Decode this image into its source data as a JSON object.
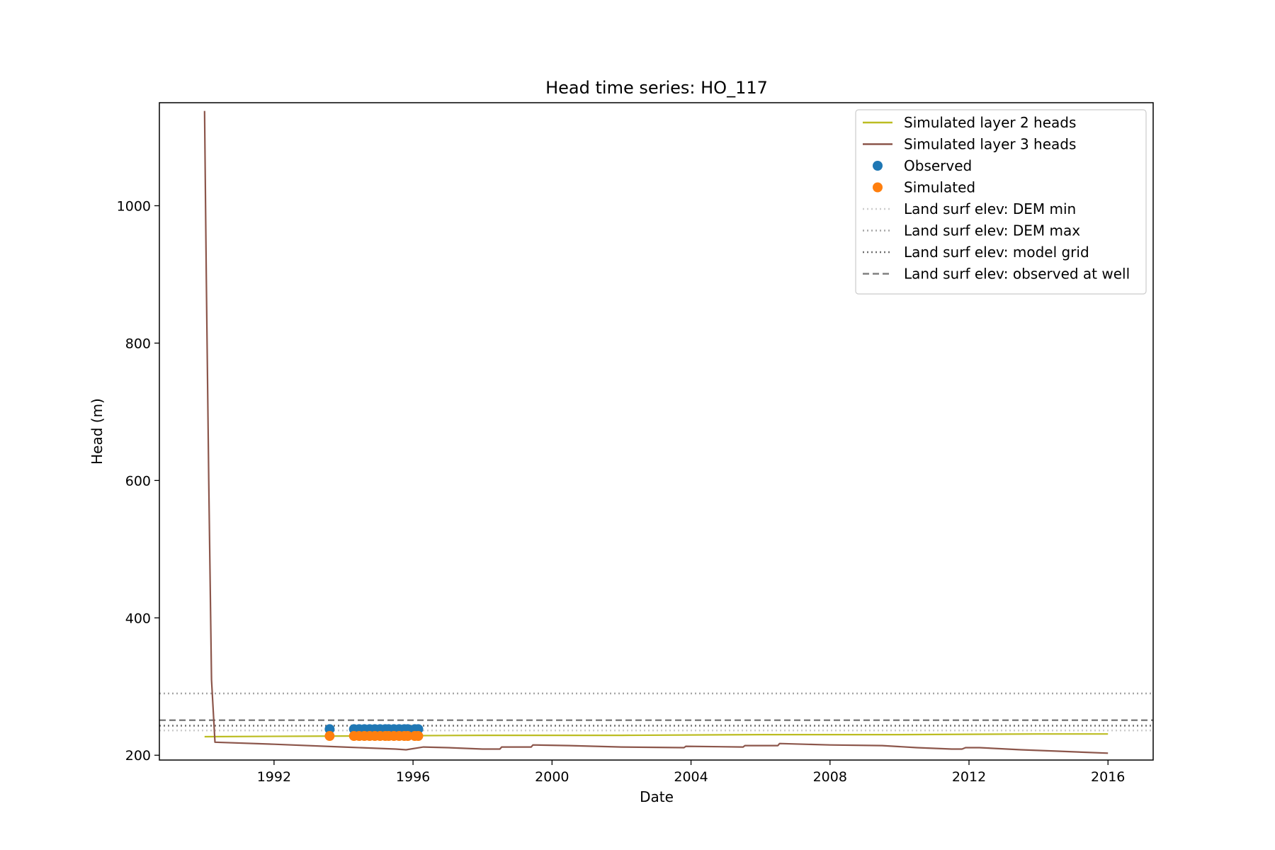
{
  "chart_data": {
    "type": "line",
    "title": "Head time series: HO_117",
    "xlabel": "Date",
    "ylabel": "Head (m)",
    "xlim": [
      1988.7,
      2017.3
    ],
    "ylim": [
      193,
      1150
    ],
    "x_ticks": [
      1992,
      1996,
      2000,
      2004,
      2008,
      2012,
      2016
    ],
    "y_ticks": [
      200,
      400,
      600,
      800,
      1000
    ],
    "grid": false,
    "legend_position": "top-right",
    "series": [
      {
        "name": "Simulated layer 2 heads",
        "kind": "line",
        "color": "#bcbd22",
        "x": [
          1990.0,
          1994.0,
          1998.0,
          2002.0,
          2006.0,
          2010.0,
          2014.0,
          2016.0
        ],
        "y": [
          227,
          228,
          229,
          229,
          230,
          230,
          231,
          231
        ]
      },
      {
        "name": "Simulated layer 3 heads",
        "kind": "line",
        "color": "#8c564b",
        "x": [
          1990.0,
          1990.05,
          1990.12,
          1990.2,
          1990.3,
          1992.0,
          1994.0,
          1995.5,
          1995.8,
          1996.3,
          1997.0,
          1998.0,
          1998.5,
          1998.55,
          1999.4,
          1999.45,
          2000.5,
          2002.0,
          2003.8,
          2003.85,
          2005.5,
          2005.55,
          2006.5,
          2006.55,
          2008.0,
          2009.5,
          2010.5,
          2011.5,
          2011.8,
          2011.9,
          2012.3,
          2013.5,
          2014.5,
          2016.0
        ],
        "y": [
          1138,
          900,
          600,
          310,
          219,
          216,
          212,
          209,
          208,
          212,
          211,
          209,
          209,
          212,
          212,
          215,
          214,
          212,
          211,
          213,
          212,
          214,
          214,
          217,
          215,
          214,
          211,
          209,
          209,
          211,
          211,
          208,
          206,
          203
        ]
      },
      {
        "name": "Observed",
        "kind": "scatter",
        "color": "#1f77b4",
        "x": [
          1993.6,
          1994.3,
          1994.45,
          1994.6,
          1994.75,
          1994.9,
          1995.05,
          1995.2,
          1995.3,
          1995.45,
          1995.6,
          1995.75,
          1995.85,
          1996.05,
          1996.15
        ],
        "y": [
          238,
          238,
          238,
          238,
          238,
          238,
          238,
          238,
          238,
          238,
          238,
          238,
          238,
          238,
          238
        ]
      },
      {
        "name": "Simulated",
        "kind": "scatter",
        "color": "#ff7f0e",
        "x": [
          1993.6,
          1994.3,
          1994.45,
          1994.6,
          1994.75,
          1994.9,
          1995.05,
          1995.2,
          1995.3,
          1995.45,
          1995.6,
          1995.75,
          1995.85,
          1996.05,
          1996.15
        ],
        "y": [
          228,
          228,
          228,
          228,
          228,
          228,
          228,
          228,
          228,
          228,
          228,
          228,
          228,
          228,
          228
        ]
      },
      {
        "name": "Land surf elev: DEM min",
        "kind": "hline",
        "style": "dotted",
        "color": "#cccccc",
        "y": 236
      },
      {
        "name": "Land surf elev: DEM max",
        "kind": "hline",
        "style": "dotted",
        "color": "#a6a6a6",
        "y": 290
      },
      {
        "name": "Land surf elev: model grid",
        "kind": "hline",
        "style": "dotted",
        "color": "#707070",
        "y": 243
      },
      {
        "name": "Land surf elev: observed at well",
        "kind": "hline",
        "style": "dashed",
        "color": "#808080",
        "y": 251
      }
    ]
  }
}
